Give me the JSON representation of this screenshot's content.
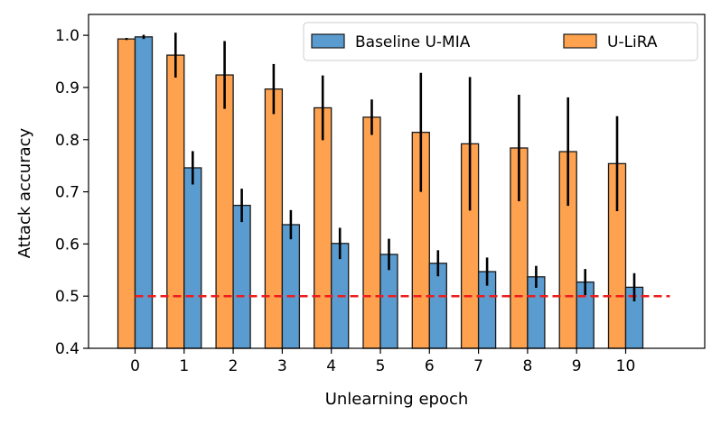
{
  "chart_data": {
    "type": "bar",
    "title": "",
    "xlabel": "Unlearning epoch",
    "ylabel": "Attack accuracy",
    "categories": [
      "0",
      "1",
      "2",
      "3",
      "4",
      "5",
      "6",
      "7",
      "8",
      "9",
      "10"
    ],
    "ylim": [
      0.4,
      1.04
    ],
    "yticks": [
      "0.4",
      "0.5",
      "0.6",
      "0.7",
      "0.8",
      "0.9",
      "1.0"
    ],
    "series": [
      {
        "name": "Baseline U-MIA",
        "color": "#5a9bd0",
        "values": [
          0.997,
          0.746,
          0.674,
          0.637,
          0.601,
          0.58,
          0.563,
          0.547,
          0.537,
          0.527,
          0.517
        ],
        "errors": [
          0.004,
          0.032,
          0.032,
          0.028,
          0.03,
          0.03,
          0.025,
          0.027,
          0.021,
          0.025,
          0.027
        ]
      },
      {
        "name": "U-LiRA",
        "color": "#fea24f",
        "values": [
          0.993,
          0.962,
          0.924,
          0.897,
          0.861,
          0.843,
          0.814,
          0.792,
          0.784,
          0.777,
          0.754
        ],
        "errors": [
          0.002,
          0.043,
          0.065,
          0.048,
          0.062,
          0.034,
          0.114,
          0.128,
          0.102,
          0.104,
          0.091
        ]
      }
    ],
    "reference_line": {
      "y": 0.5,
      "color": "#ee1c1c",
      "style": "dashed"
    },
    "legend": {
      "placement": "top-right",
      "columns": 2
    },
    "grid": false
  }
}
